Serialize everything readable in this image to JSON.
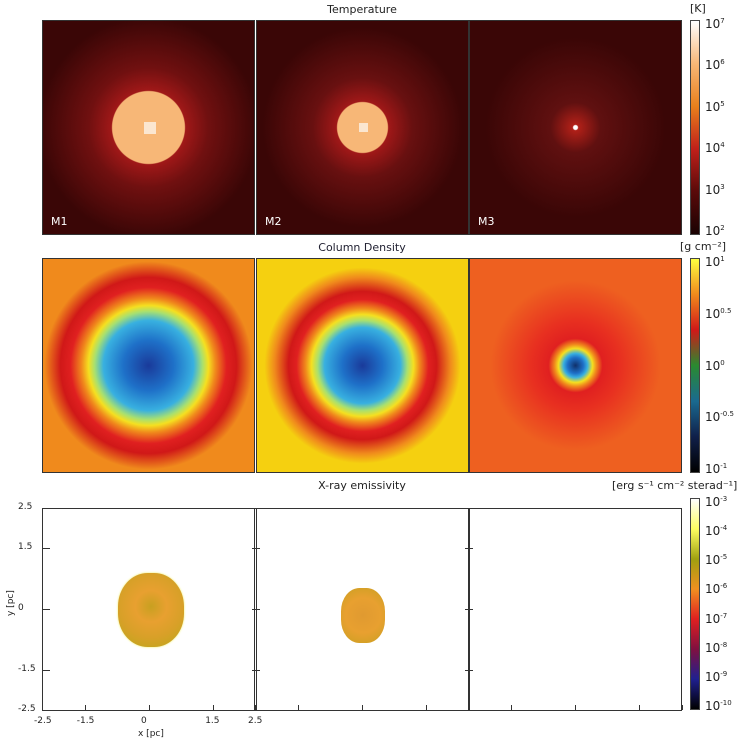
{
  "chart_data": [
    {
      "type": "heatmap",
      "title": "Temperature",
      "unit": "[K]",
      "panels": [
        "M1",
        "M2",
        "M3"
      ],
      "colorbar": {
        "scale": "log",
        "range": [
          100,
          10000000
        ],
        "ticks": [
          {
            "base": "10",
            "exp": "7"
          },
          {
            "base": "10",
            "exp": "6"
          },
          {
            "base": "10",
            "exp": "5"
          },
          {
            "base": "10",
            "exp": "4"
          },
          {
            "base": "10",
            "exp": "3"
          },
          {
            "base": "10",
            "exp": "2"
          }
        ],
        "colors": [
          "#ffffff",
          "#f7b777",
          "#e8801c",
          "#c0201a",
          "#5a0a0a",
          "#1a0202"
        ]
      }
    },
    {
      "type": "heatmap",
      "title": "Column Density",
      "unit": "[g cm⁻²]",
      "colorbar": {
        "scale": "log",
        "range": [
          0.1,
          10
        ],
        "ticks": [
          {
            "base": "10",
            "exp": "1"
          },
          {
            "base": "10",
            "exp": "0.5"
          },
          {
            "base": "10",
            "exp": "0"
          },
          {
            "base": "10",
            "exp": "-0.5"
          },
          {
            "base": "10",
            "exp": "-1"
          }
        ],
        "colors": [
          "#ffff40",
          "#f08a1c",
          "#d01818",
          "#2a8a30",
          "#1a6a90",
          "#10204a",
          "#000000"
        ]
      }
    },
    {
      "type": "heatmap",
      "title": "X-ray emissivity",
      "unit": "[erg s⁻¹ cm⁻² sterad⁻¹]",
      "colorbar": {
        "scale": "log",
        "range": [
          1e-10,
          0.001
        ],
        "ticks": [
          {
            "base": "10",
            "exp": "-3"
          },
          {
            "base": "10",
            "exp": "-4"
          },
          {
            "base": "10",
            "exp": "-5"
          },
          {
            "base": "10",
            "exp": "-6"
          },
          {
            "base": "10",
            "exp": "-7"
          },
          {
            "base": "10",
            "exp": "-8"
          },
          {
            "base": "10",
            "exp": "-9"
          },
          {
            "base": "10",
            "exp": "-10"
          }
        ],
        "colors": [
          "#ffffff",
          "#ffff60",
          "#a0a010",
          "#f09020",
          "#e02020",
          "#801040",
          "#202090",
          "#000000"
        ]
      },
      "xlabel": "x [pc]",
      "ylabel": "y [pc]",
      "xticks": [
        "-2.5",
        "-1.5",
        "0",
        "1.5",
        "2.5"
      ],
      "yticks": [
        "2.5",
        "1.5",
        "0",
        "-1.5",
        "-2.5"
      ],
      "xlim": [
        -2.5,
        2.5
      ],
      "ylim": [
        -2.5,
        2.5
      ]
    }
  ]
}
